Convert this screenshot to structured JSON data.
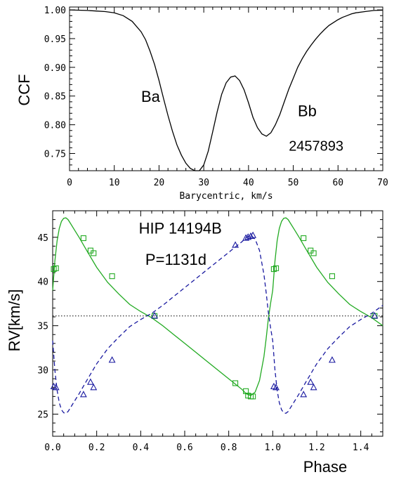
{
  "chart_data": [
    {
      "type": "line",
      "title": "",
      "xlabel": "Barycentric, km/s",
      "ylabel": "CCF",
      "xlim": [
        0,
        70
      ],
      "ylim": [
        0.72,
        1.005
      ],
      "xticks": [
        "0",
        "10",
        "20",
        "30",
        "40",
        "50",
        "60",
        "70"
      ],
      "yticks": [
        "0.75",
        "0.80",
        "0.85",
        "0.90",
        "0.95",
        "1.00"
      ],
      "x_tick_values": [
        0,
        10,
        20,
        30,
        40,
        50,
        60,
        70
      ],
      "y_tick_values": [
        0.75,
        0.8,
        0.85,
        0.9,
        0.95,
        1.0
      ],
      "annotations": [
        {
          "text": "Ba",
          "x": 16,
          "y": 0.84
        },
        {
          "text": "Bb",
          "x": 51,
          "y": 0.815
        },
        {
          "text": "2457893",
          "x": 49,
          "y": 0.755
        }
      ],
      "series": [
        {
          "color": "#000000",
          "x": [
            0,
            2,
            4,
            6,
            8,
            10,
            12,
            14,
            16,
            17,
            18,
            19,
            20,
            21,
            22,
            23,
            24,
            25,
            26,
            27,
            28,
            29,
            30,
            31,
            32,
            33,
            34,
            35,
            36,
            37,
            38,
            39,
            40,
            41,
            42,
            43,
            44,
            45,
            46,
            47,
            48,
            49,
            50,
            51,
            52,
            53,
            54,
            55,
            56,
            57,
            58,
            59,
            60,
            61,
            62,
            63,
            64,
            66,
            68,
            70
          ],
          "y": [
            1.0,
            0.9995,
            0.999,
            0.998,
            0.997,
            0.995,
            0.99,
            0.98,
            0.962,
            0.948,
            0.928,
            0.905,
            0.877,
            0.846,
            0.816,
            0.789,
            0.765,
            0.747,
            0.733,
            0.724,
            0.718,
            0.72,
            0.73,
            0.754,
            0.788,
            0.823,
            0.853,
            0.873,
            0.883,
            0.885,
            0.877,
            0.861,
            0.838,
            0.813,
            0.795,
            0.784,
            0.78,
            0.786,
            0.8,
            0.818,
            0.84,
            0.862,
            0.881,
            0.9,
            0.915,
            0.928,
            0.939,
            0.949,
            0.958,
            0.966,
            0.973,
            0.978,
            0.983,
            0.987,
            0.99,
            0.993,
            0.995,
            0.997,
            0.999,
            0.9995
          ]
        }
      ]
    },
    {
      "type": "scatter",
      "title": "",
      "xlabel": "Phase",
      "ylabel": "RV[km/s]",
      "xlim": [
        0,
        1.5
      ],
      "ylim": [
        22.5,
        48
      ],
      "xticks": [
        "0.0",
        "0.2",
        "0.4",
        "0.6",
        "0.8",
        "1.0",
        "1.2",
        "1.4"
      ],
      "yticks": [
        "25",
        "30",
        "35",
        "40",
        "45"
      ],
      "x_tick_values": [
        0,
        0.2,
        0.4,
        0.6,
        0.8,
        1.0,
        1.2,
        1.4
      ],
      "y_tick_values": [
        25,
        30,
        35,
        40,
        45
      ],
      "annotations": [
        {
          "text": "HIP 14194B",
          "x": 0.58,
          "y": 45.4
        },
        {
          "text": "P=1131d",
          "x": 0.56,
          "y": 41.9
        }
      ],
      "reference_line": {
        "y": 36.1,
        "style": "dotted",
        "color": "#000000"
      },
      "series": [
        {
          "marker": "square",
          "color": "#22aa22",
          "line": "solid",
          "points_x": [
            0.005,
            0.015,
            0.14,
            0.172,
            0.186,
            0.27,
            0.463,
            0.83,
            0.878,
            0.888,
            0.9,
            0.91,
            1.005,
            1.015,
            1.14,
            1.172,
            1.186,
            1.27,
            1.463
          ],
          "points_y": [
            41.4,
            41.5,
            44.9,
            43.5,
            43.2,
            40.6,
            36.1,
            28.5,
            27.6,
            27.1,
            27.0,
            27.0,
            41.4,
            41.5,
            44.9,
            43.5,
            43.2,
            40.6,
            36.1
          ],
          "curve_x": [
            0.0,
            0.01,
            0.02,
            0.03,
            0.04,
            0.05,
            0.06,
            0.07,
            0.08,
            0.1,
            0.12,
            0.15,
            0.2,
            0.25,
            0.3,
            0.35,
            0.4,
            0.45,
            0.5,
            0.55,
            0.6,
            0.65,
            0.7,
            0.75,
            0.8,
            0.83,
            0.86,
            0.88,
            0.9,
            0.92,
            0.94,
            0.96,
            0.97,
            0.98,
            0.99,
            1.0,
            1.01,
            1.02,
            1.03,
            1.04,
            1.05,
            1.06,
            1.07,
            1.08,
            1.1,
            1.12,
            1.15,
            1.2,
            1.25,
            1.3,
            1.35,
            1.4,
            1.45,
            1.5
          ],
          "curve_y": [
            39.0,
            42.3,
            44.6,
            46.0,
            46.8,
            47.15,
            47.2,
            47.0,
            46.6,
            45.8,
            45.0,
            43.7,
            41.6,
            39.9,
            38.6,
            37.4,
            36.6,
            35.9,
            35.0,
            34.0,
            33.0,
            32.0,
            31.0,
            30.0,
            29.0,
            28.4,
            27.8,
            27.3,
            27.1,
            27.5,
            28.8,
            31.5,
            33.5,
            35.8,
            37.5,
            39.0,
            42.3,
            44.6,
            46.0,
            46.8,
            47.15,
            47.2,
            47.0,
            46.6,
            45.8,
            45.0,
            43.7,
            41.6,
            39.9,
            38.6,
            37.4,
            36.6,
            35.9,
            35.0
          ]
        },
        {
          "marker": "triangle",
          "color": "#1a1aa0",
          "line": "dashed",
          "points_x": [
            0.005,
            0.015,
            0.14,
            0.172,
            0.186,
            0.27,
            0.463,
            0.83,
            0.878,
            0.888,
            0.9,
            0.91,
            1.005,
            1.015,
            1.14,
            1.172,
            1.186,
            1.27,
            1.463
          ],
          "points_y": [
            28.1,
            28.0,
            27.2,
            28.6,
            28.0,
            31.1,
            36.1,
            44.1,
            44.9,
            45.0,
            45.1,
            45.2,
            28.1,
            28.0,
            27.2,
            28.6,
            28.0,
            31.1,
            36.1
          ],
          "curve_x": [
            0.0,
            0.01,
            0.02,
            0.03,
            0.04,
            0.05,
            0.06,
            0.07,
            0.08,
            0.1,
            0.12,
            0.15,
            0.2,
            0.25,
            0.3,
            0.35,
            0.4,
            0.45,
            0.5,
            0.55,
            0.6,
            0.65,
            0.7,
            0.75,
            0.8,
            0.83,
            0.86,
            0.88,
            0.9,
            0.92,
            0.94,
            0.96,
            0.97,
            0.98,
            0.99,
            1.0,
            1.01,
            1.02,
            1.03,
            1.04,
            1.05,
            1.06,
            1.07,
            1.08,
            1.1,
            1.12,
            1.15,
            1.2,
            1.25,
            1.3,
            1.35,
            1.4,
            1.45,
            1.5
          ],
          "curve_y": [
            33.3,
            30.0,
            27.7,
            26.3,
            25.5,
            25.15,
            25.1,
            25.3,
            25.7,
            26.5,
            27.3,
            28.6,
            30.7,
            32.4,
            33.7,
            34.9,
            35.7,
            36.4,
            37.3,
            38.3,
            39.3,
            40.3,
            41.3,
            42.3,
            43.3,
            43.9,
            44.5,
            45.0,
            45.2,
            44.8,
            43.5,
            40.8,
            38.8,
            36.5,
            34.8,
            33.3,
            30.0,
            27.7,
            26.3,
            25.5,
            25.15,
            25.1,
            25.3,
            25.7,
            26.5,
            27.3,
            28.6,
            30.7,
            32.4,
            33.7,
            34.9,
            35.7,
            36.4,
            37.3
          ]
        }
      ]
    }
  ]
}
